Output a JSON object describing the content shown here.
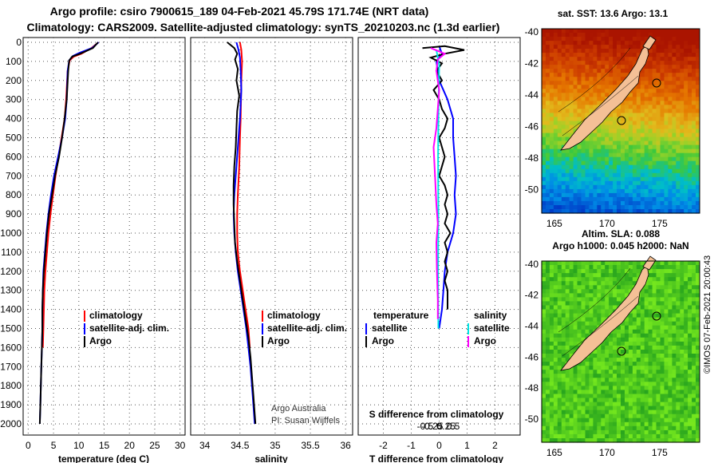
{
  "header": {
    "title_line1": "Argo profile: csiro 7900615_189 04-Feb-2021 45.79S 171.74E (NRT data)",
    "title_line2": "Climatology: CARS2009. Satellite-adjusted climatology: synTS_20210203.nc (1.3d earlier)"
  },
  "colors": {
    "climatology": "#ff0000",
    "satellite": "#0000ff",
    "argo": "#000000",
    "salinity_satellite": "#00e5e5",
    "salinity_argo": "#ff00ff",
    "land": "#f4c096"
  },
  "chart_data": [
    {
      "type": "line",
      "id": "temperature",
      "xlabel": "temperature (deg C)",
      "xlim": [
        -1,
        31
      ],
      "xticks": [
        0,
        5,
        10,
        15,
        20,
        25,
        30
      ],
      "ylim": [
        0,
        2050
      ],
      "yticks": [
        0,
        100,
        200,
        300,
        400,
        500,
        600,
        700,
        800,
        900,
        1000,
        1100,
        1200,
        1300,
        1400,
        1500,
        1600,
        1700,
        1800,
        1900,
        2000
      ],
      "legend": [
        "climatology",
        "satellite-adj. clim.",
        "Argo"
      ],
      "series": [
        {
          "name": "climatology",
          "color": "#ff0000",
          "points": [
            [
              13.9,
              0
            ],
            [
              12.5,
              30
            ],
            [
              10.5,
              60
            ],
            [
              9.0,
              75
            ],
            [
              8.2,
              95
            ],
            [
              7.8,
              150
            ],
            [
              7.5,
              300
            ],
            [
              7.2,
              400
            ],
            [
              6.6,
              500
            ],
            [
              6.0,
              600
            ],
            [
              5.4,
              700
            ],
            [
              4.9,
              800
            ],
            [
              4.4,
              900
            ],
            [
              4.0,
              1000
            ],
            [
              3.7,
              1100
            ],
            [
              3.4,
              1200
            ],
            [
              3.2,
              1300
            ],
            [
              3.1,
              1400
            ],
            [
              3.0,
              1500
            ],
            [
              2.9,
              1600
            ]
          ]
        },
        {
          "name": "satellite-adj. clim.",
          "color": "#0000ff",
          "points": [
            [
              13.9,
              0
            ],
            [
              12.6,
              30
            ],
            [
              10.2,
              55
            ],
            [
              8.8,
              72
            ],
            [
              8.1,
              95
            ],
            [
              7.8,
              150
            ],
            [
              7.6,
              300
            ],
            [
              7.3,
              400
            ],
            [
              6.7,
              500
            ],
            [
              5.9,
              600
            ],
            [
              5.1,
              700
            ],
            [
              4.5,
              800
            ],
            [
              4.0,
              900
            ],
            [
              3.6,
              1000
            ],
            [
              3.3,
              1100
            ],
            [
              3.0,
              1200
            ],
            [
              2.9,
              1300
            ],
            [
              2.8,
              1400
            ],
            [
              2.8,
              1500
            ],
            [
              2.7,
              1600
            ],
            [
              2.6,
              1700
            ],
            [
              2.5,
              1800
            ],
            [
              2.4,
              1900
            ],
            [
              2.3,
              2000
            ]
          ]
        },
        {
          "name": "Argo",
          "color": "#000000",
          "points": [
            [
              13.8,
              0
            ],
            [
              12.8,
              30
            ],
            [
              10.4,
              58
            ],
            [
              8.7,
              75
            ],
            [
              8.1,
              95
            ],
            [
              7.9,
              150
            ],
            [
              7.6,
              300
            ],
            [
              7.2,
              400
            ],
            [
              6.7,
              500
            ],
            [
              6.1,
              600
            ],
            [
              5.3,
              700
            ],
            [
              4.7,
              800
            ],
            [
              4.1,
              900
            ],
            [
              3.7,
              1000
            ],
            [
              3.4,
              1100
            ],
            [
              3.1,
              1200
            ],
            [
              2.9,
              1300
            ],
            [
              2.8,
              1400
            ],
            [
              2.8,
              1500
            ],
            [
              2.7,
              1600
            ],
            [
              2.6,
              1700
            ],
            [
              2.5,
              1800
            ],
            [
              2.4,
              1900
            ],
            [
              2.3,
              2000
            ]
          ]
        }
      ]
    },
    {
      "type": "line",
      "id": "salinity",
      "xlabel": "salinity",
      "xlim": [
        33.8,
        36.1
      ],
      "xticks": [
        34,
        34.5,
        35,
        35.5,
        36
      ],
      "xticklabels": [
        "34",
        "34.5",
        "35",
        "35.5",
        "36"
      ],
      "ylim": [
        0,
        2050
      ],
      "legend": [
        "climatology",
        "satellite-adj. clim.",
        "Argo"
      ],
      "annotation_line1": "Argo Australia",
      "annotation_line2": "PI: Susan Wijffels",
      "series": [
        {
          "name": "climatology",
          "color": "#ff0000",
          "points": [
            [
              34.5,
              0
            ],
            [
              34.52,
              40
            ],
            [
              34.53,
              100
            ],
            [
              34.52,
              200
            ],
            [
              34.51,
              400
            ],
            [
              34.5,
              500
            ],
            [
              34.49,
              650
            ],
            [
              34.47,
              800
            ],
            [
              34.46,
              900
            ],
            [
              34.46,
              1000
            ],
            [
              34.47,
              1100
            ],
            [
              34.5,
              1200
            ],
            [
              34.54,
              1300
            ],
            [
              34.58,
              1400
            ],
            [
              34.62,
              1500
            ],
            [
              34.64,
              1600
            ]
          ]
        },
        {
          "name": "satellite-adj. clim.",
          "color": "#0000ff",
          "points": [
            [
              34.45,
              0
            ],
            [
              34.48,
              40
            ],
            [
              34.5,
              80
            ],
            [
              34.51,
              150
            ],
            [
              34.52,
              250
            ],
            [
              34.5,
              400
            ],
            [
              34.48,
              500
            ],
            [
              34.45,
              650
            ],
            [
              34.42,
              800
            ],
            [
              34.41,
              900
            ],
            [
              34.42,
              1000
            ],
            [
              34.44,
              1100
            ],
            [
              34.47,
              1200
            ],
            [
              34.51,
              1300
            ],
            [
              34.55,
              1400
            ],
            [
              34.59,
              1500
            ],
            [
              34.62,
              1600
            ],
            [
              34.65,
              1700
            ],
            [
              34.67,
              1800
            ],
            [
              34.69,
              1900
            ],
            [
              34.71,
              2000
            ]
          ]
        },
        {
          "name": "Argo",
          "color": "#000000",
          "points": [
            [
              34.32,
              0
            ],
            [
              34.42,
              30
            ],
            [
              34.46,
              60
            ],
            [
              34.43,
              90
            ],
            [
              34.47,
              140
            ],
            [
              34.45,
              200
            ],
            [
              34.49,
              280
            ],
            [
              34.46,
              360
            ],
            [
              34.45,
              450
            ],
            [
              34.44,
              550
            ],
            [
              34.42,
              650
            ],
            [
              34.41,
              750
            ],
            [
              34.41,
              850
            ],
            [
              34.42,
              950
            ],
            [
              34.43,
              1050
            ],
            [
              34.46,
              1150
            ],
            [
              34.5,
              1250
            ],
            [
              34.54,
              1350
            ],
            [
              34.58,
              1450
            ],
            [
              34.62,
              1550
            ],
            [
              34.65,
              1650
            ],
            [
              34.67,
              1750
            ],
            [
              34.69,
              1850
            ],
            [
              34.71,
              1950
            ],
            [
              34.72,
              2000
            ]
          ]
        }
      ]
    },
    {
      "type": "line",
      "id": "difference",
      "xlabel": "T difference from climatology",
      "xlabel_top": "S difference from climatology",
      "xlim": [
        -2.9,
        2.9
      ],
      "xticks": [
        -2,
        -1,
        0,
        1,
        2
      ],
      "sticks": [
        -0.5,
        -0.25,
        0,
        0.25,
        0.5
      ],
      "sticklabels": [
        "-0.5",
        "-0.25",
        "0",
        "0.25",
        "0.5"
      ],
      "ylim": [
        0,
        2050
      ],
      "legend_temperature_title": "temperature",
      "legend_salinity_title": "salinity",
      "legend_satellite": "satellite",
      "legend_argo": "Argo",
      "series": [
        {
          "name": "T satellite",
          "color": "#0000ff",
          "points": [
            [
              0.0,
              20
            ],
            [
              0.1,
              60
            ],
            [
              -0.1,
              100
            ],
            [
              0.0,
              200
            ],
            [
              0.3,
              300
            ],
            [
              0.5,
              400
            ],
            [
              0.5,
              500
            ],
            [
              0.55,
              600
            ],
            [
              0.6,
              700
            ],
            [
              0.55,
              800
            ],
            [
              0.6,
              900
            ],
            [
              0.5,
              1000
            ],
            [
              0.3,
              1100
            ],
            [
              0.2,
              1200
            ],
            [
              0.15,
              1300
            ],
            [
              0.1,
              1400
            ],
            [
              0.0,
              1500
            ]
          ]
        },
        {
          "name": "T Argo",
          "color": "#000000",
          "points": [
            [
              -0.6,
              30
            ],
            [
              0.2,
              20
            ],
            [
              0.9,
              40
            ],
            [
              0.2,
              60
            ],
            [
              -0.3,
              80
            ],
            [
              0.1,
              110
            ],
            [
              -0.1,
              150
            ],
            [
              0.1,
              200
            ],
            [
              -0.2,
              250
            ],
            [
              0.0,
              300
            ],
            [
              0.1,
              350
            ],
            [
              0.3,
              400
            ],
            [
              0.2,
              450
            ],
            [
              0.0,
              500
            ],
            [
              0.1,
              550
            ],
            [
              0.2,
              600
            ],
            [
              0.1,
              650
            ],
            [
              0.0,
              700
            ],
            [
              0.2,
              750
            ],
            [
              0.3,
              800
            ],
            [
              0.2,
              850
            ],
            [
              0.3,
              900
            ],
            [
              0.2,
              950
            ],
            [
              0.4,
              1000
            ],
            [
              0.2,
              1050
            ],
            [
              0.3,
              1100
            ],
            [
              0.2,
              1150
            ],
            [
              0.3,
              1200
            ],
            [
              0.2,
              1250
            ],
            [
              0.3,
              1300
            ],
            [
              0.3,
              1400
            ]
          ]
        },
        {
          "name": "S satellite",
          "color": "#00e5e5",
          "points": [
            [
              -0.1,
              40
            ],
            [
              0.0,
              120
            ],
            [
              -0.02,
              300
            ],
            [
              -0.04,
              600
            ],
            [
              -0.03,
              900
            ],
            [
              -0.04,
              1200
            ],
            [
              -0.03,
              1500
            ]
          ]
        },
        {
          "name": "S Argo",
          "color": "#ff00ff",
          "points": [
            [
              -0.3,
              30
            ],
            [
              0.2,
              60
            ],
            [
              -0.05,
              90
            ],
            [
              -0.1,
              150
            ],
            [
              0.0,
              250
            ],
            [
              -0.05,
              350
            ],
            [
              -0.1,
              450
            ],
            [
              -0.2,
              550
            ],
            [
              -0.15,
              700
            ],
            [
              -0.1,
              850
            ],
            [
              -0.05,
              950
            ],
            [
              -0.1,
              1050
            ],
            [
              -0.08,
              1200
            ],
            [
              -0.05,
              1350
            ],
            [
              -0.05,
              1450
            ]
          ]
        }
      ]
    },
    {
      "type": "heatmap",
      "id": "sst_map",
      "title": "sat. SST: 13.6 Argo: 13.1",
      "xticks": [
        165,
        170,
        175
      ],
      "yticks": [
        -40,
        -42,
        -44,
        -46,
        -48,
        -50
      ],
      "xlim": [
        163.8,
        178.8
      ],
      "ylim": [
        -51.5,
        -39.8
      ],
      "profile_lon": 171.74,
      "profile_lat": -45.79
    },
    {
      "type": "heatmap",
      "id": "sla_map",
      "title_line1": "Altim. SLA: 0.088",
      "title_line2": "Argo h1000: 0.045 h2000: NaN",
      "side_label": "©IMOS 07-Feb-2021 20:00:43",
      "xticks": [
        165,
        170,
        175
      ],
      "yticks": [
        -40,
        -42,
        -44,
        -46,
        -48,
        -50
      ],
      "xlim": [
        163.8,
        178.8
      ],
      "ylim": [
        -51.5,
        -39.8
      ],
      "profile_lon": 171.74,
      "profile_lat": -45.79
    }
  ]
}
